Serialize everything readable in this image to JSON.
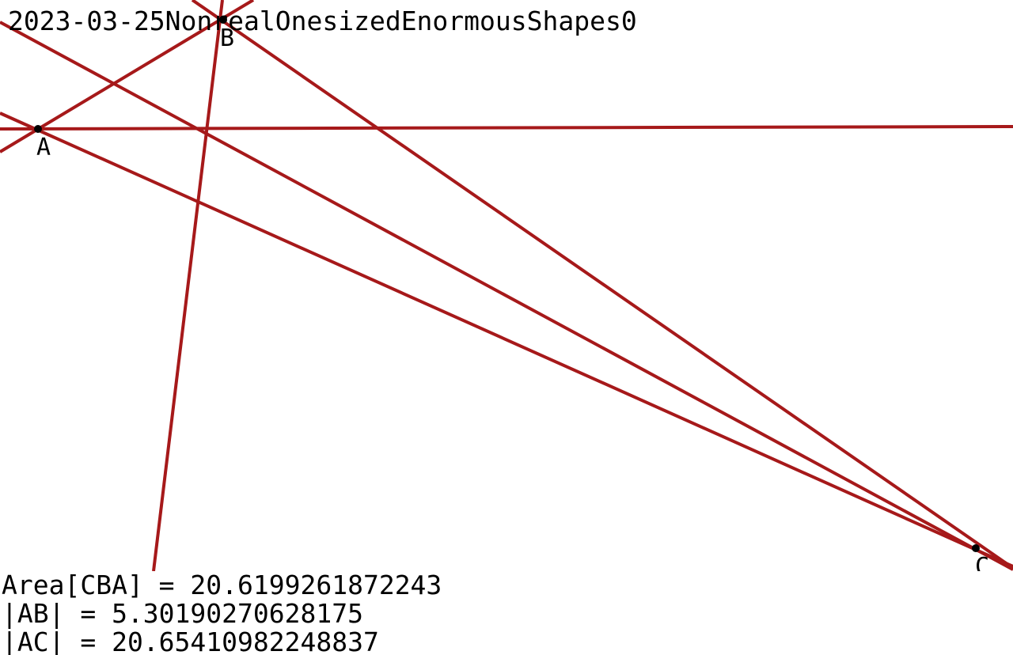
{
  "title": "2023-03-25NonrealOnesizedEnormousShapes0",
  "points": [
    {
      "name": "A",
      "label": "A"
    },
    {
      "name": "B",
      "label": "B"
    },
    {
      "name": "C",
      "label": "C"
    }
  ],
  "measurements": [
    {
      "text": "Area[CBA] = 20.6199261872243"
    },
    {
      "text": "|AB| = 5.30190270628175"
    },
    {
      "text": "|AC| = 20.65410982248837"
    }
  ],
  "colors": {
    "line": "#a6191a",
    "point": "#000000",
    "text": "#000000",
    "background": "#ffffff"
  }
}
